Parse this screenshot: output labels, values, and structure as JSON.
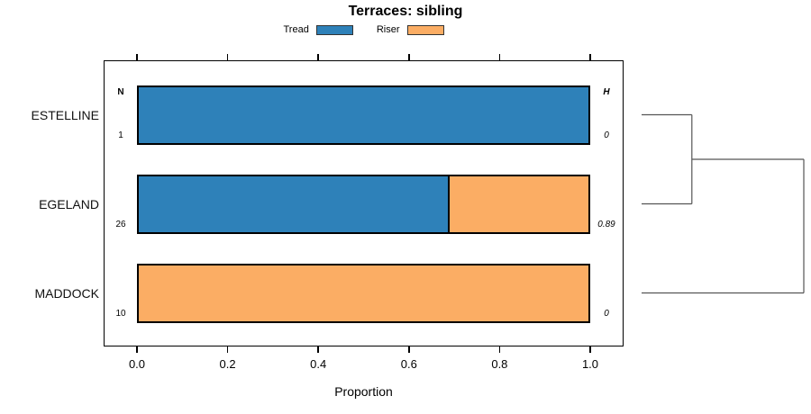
{
  "chart_data": {
    "type": "bar",
    "orientation": "horizontal",
    "stacked": true,
    "title": "Terraces: sibling",
    "xlabel": "Proportion",
    "xlim": [
      0,
      1
    ],
    "xtick_labels": [
      "0.0",
      "0.2",
      "0.4",
      "0.6",
      "0.8",
      "1.0"
    ],
    "xtick_values": [
      0,
      0.2,
      0.4,
      0.6,
      0.8,
      1.0
    ],
    "categories": [
      "ESTELLINE",
      "EGELAND",
      "MADDOCK"
    ],
    "series": [
      {
        "name": "Tread",
        "color": "#2E81B9",
        "values": [
          1.0,
          0.69,
          0.0
        ]
      },
      {
        "name": "Riser",
        "color": "#FBAD64",
        "values": [
          0.0,
          0.31,
          1.0
        ]
      }
    ],
    "row_annotations": {
      "n_header": "N",
      "h_header": "H",
      "n_values": [
        "1",
        "26",
        "10"
      ],
      "h_values": [
        "0",
        "0.89",
        "0"
      ]
    },
    "legend_position": "top",
    "grid": false,
    "bar_border_color": "#000000",
    "dendrogram": {
      "side": "right",
      "line_color": "#555555",
      "merges": [
        {
          "a": {
            "type": "leaf",
            "index": 0
          },
          "b": {
            "type": "leaf",
            "index": 1
          },
          "height": 0.31
        },
        {
          "a": {
            "type": "merge",
            "index": 0
          },
          "b": {
            "type": "leaf",
            "index": 2
          },
          "height": 1.0
        }
      ]
    }
  }
}
